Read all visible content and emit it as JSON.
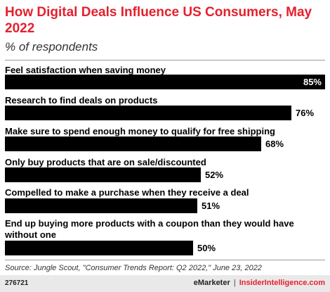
{
  "title": "How Digital Deals Influence US Consumers, May 2022",
  "subtitle": "% of respondents",
  "chart_data": {
    "type": "bar",
    "orientation": "horizontal",
    "categories": [
      "Feel satisfaction when saving money",
      "Research to find deals on products",
      "Make sure to spend enough money to qualify for free shipping",
      "Only buy products that are on sale/discounted",
      "Compelled to make a purchase when they receive a deal",
      "End up buying more products with a coupon than they would have without one"
    ],
    "values": [
      85,
      76,
      68,
      52,
      51,
      50
    ],
    "value_labels": [
      "85%",
      "76%",
      "68%",
      "52%",
      "51%",
      "50%"
    ],
    "title": "How Digital Deals Influence US Consumers, May 2022",
    "subtitle": "% of respondents",
    "bar_color": "#000000",
    "xlim": [
      0,
      85
    ]
  },
  "source": "Source: Jungle Scout, \"Consumer Trends Report: Q2 2022,\" June 23, 2022",
  "footer": {
    "chart_id": "276721",
    "brand_left": "eMarketer",
    "separator": "|",
    "brand_right": "InsiderIntelligence.com"
  },
  "colors": {
    "accent": "#e5202e",
    "bar": "#000000",
    "footer_bg": "#e9e9e9"
  }
}
